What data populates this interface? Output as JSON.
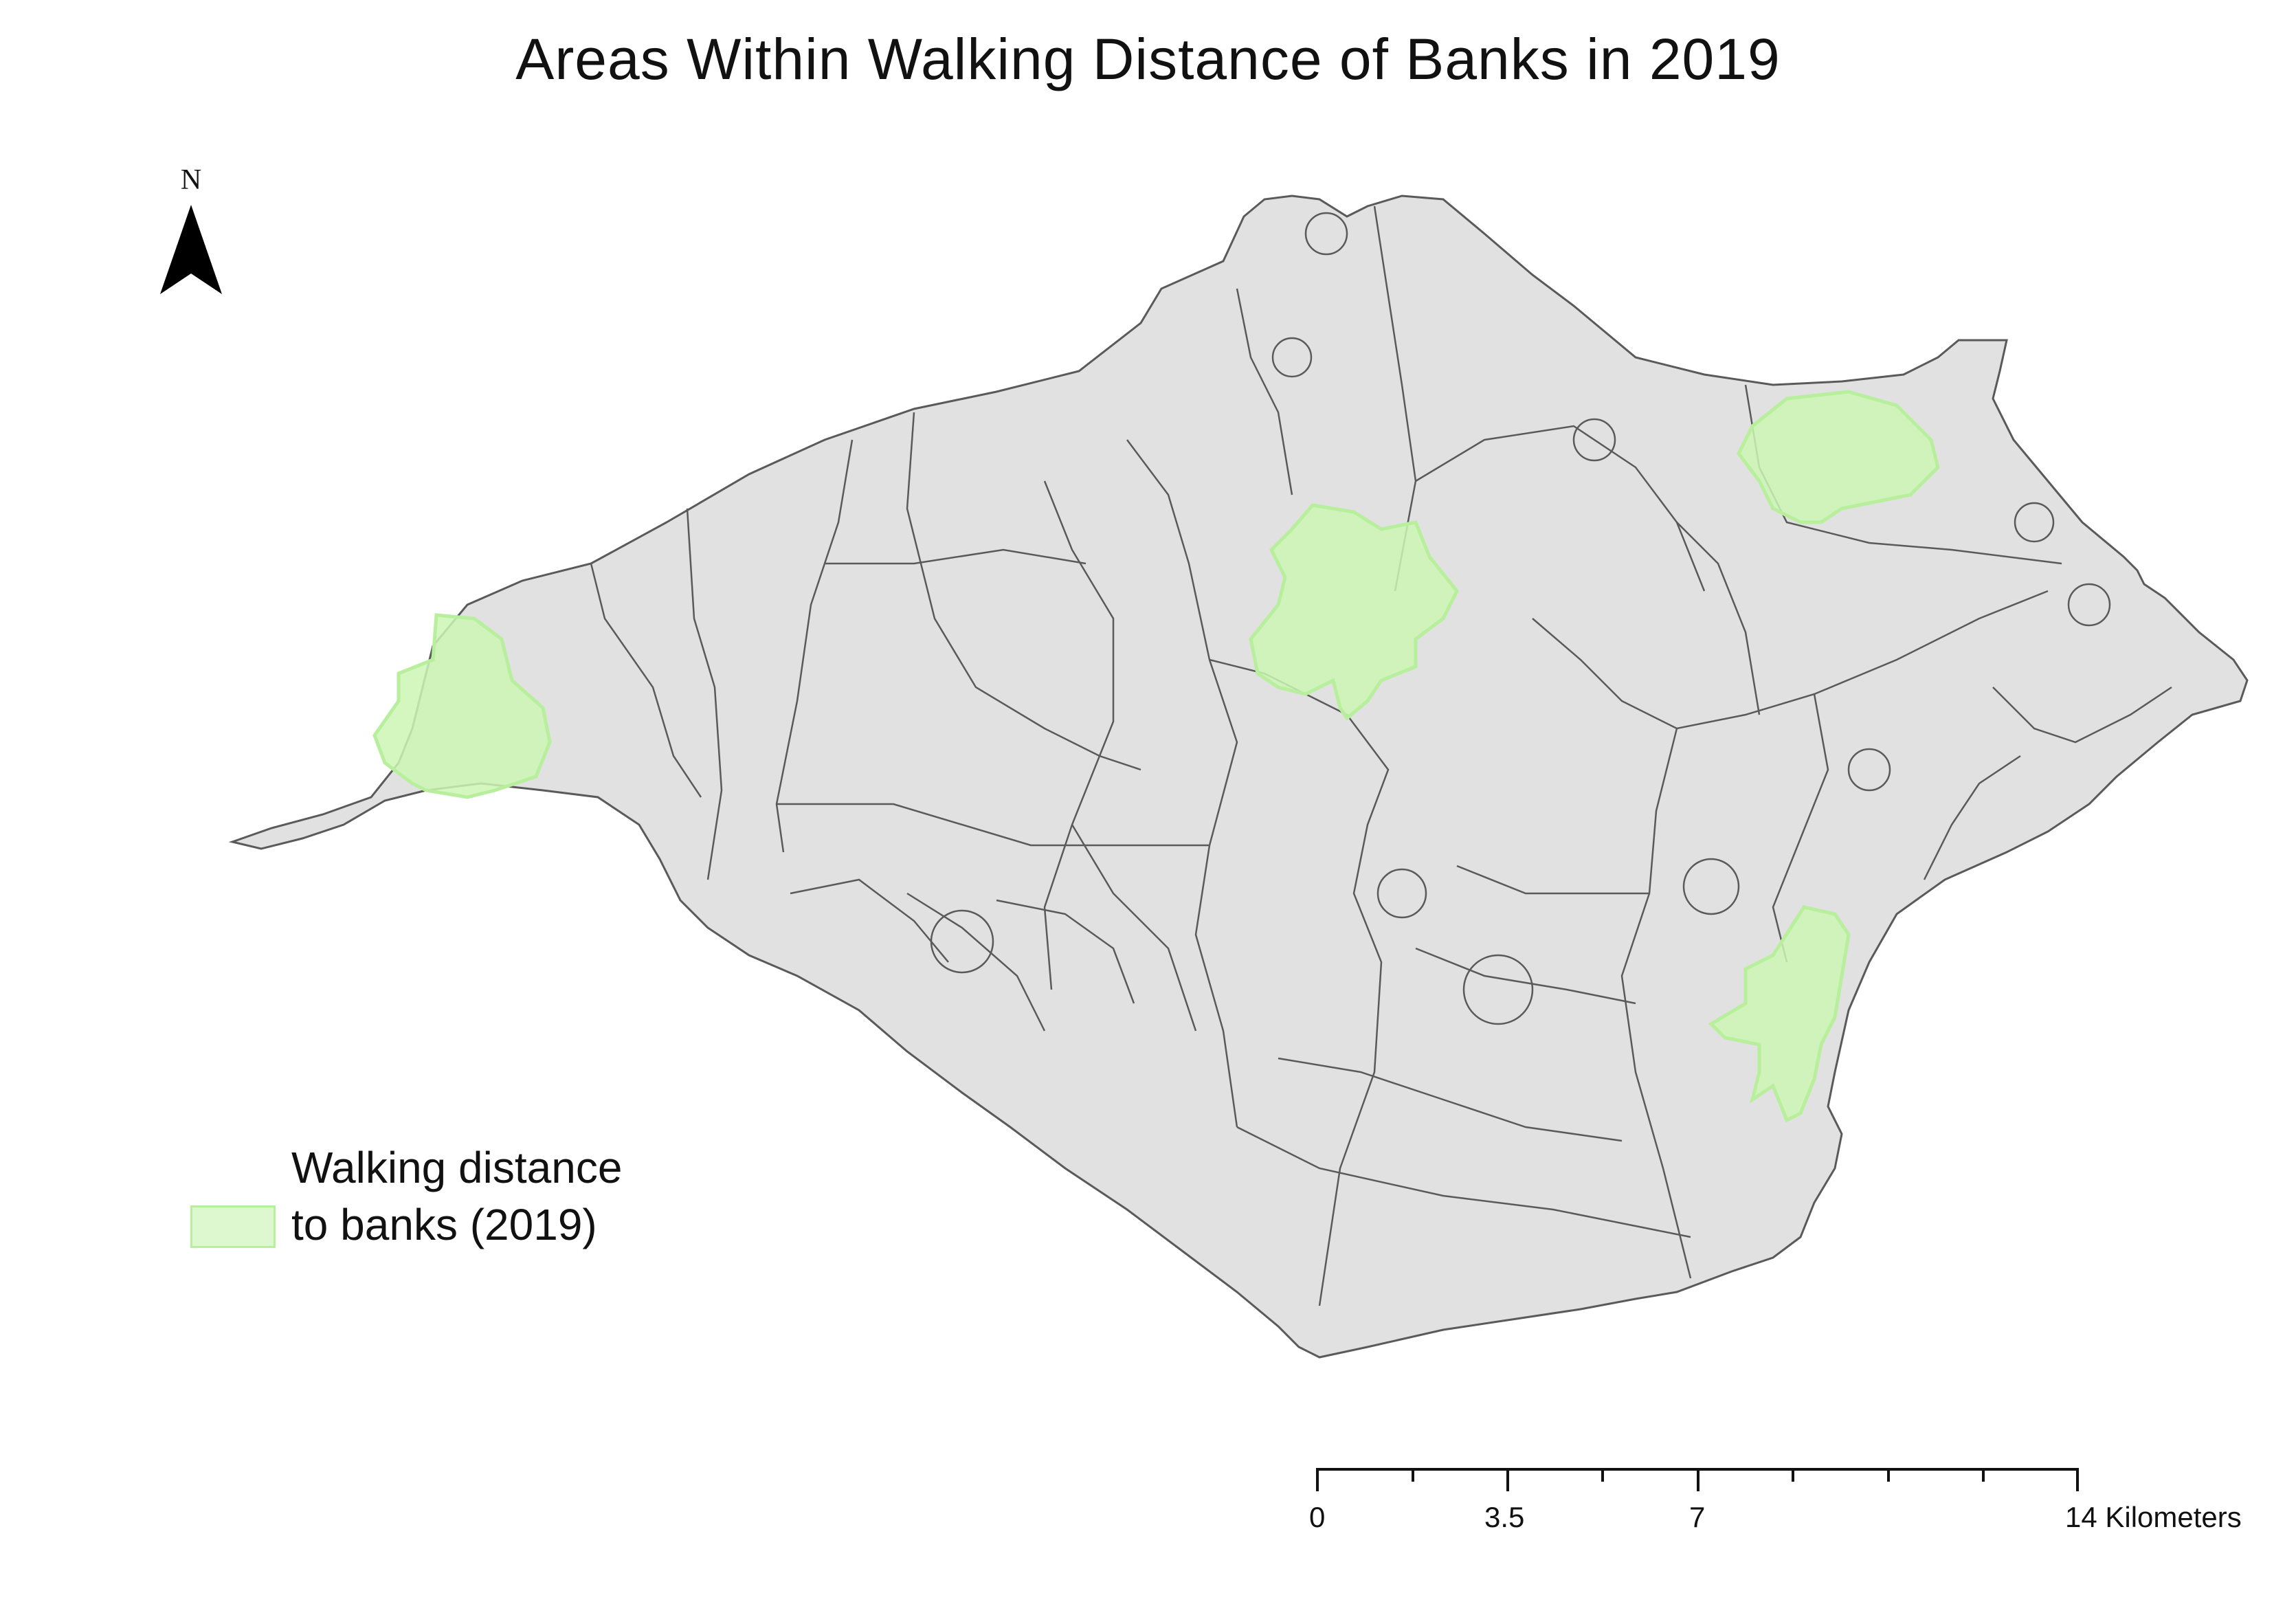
{
  "title": "Areas Within Walking Distance of Banks in 2019",
  "north_arrow": {
    "letter": "N"
  },
  "legend": {
    "label": "Walking distance to banks (2019)",
    "fill_color": "#ddf8cf",
    "stroke_color": "#b8ef9c"
  },
  "scale_bar": {
    "labels": [
      "0",
      "3.5",
      "7",
      "14 Kilometers"
    ]
  },
  "colors": {
    "island_fill": "#e1e1e1",
    "boundary": "#5a5a5a",
    "walking_area": "#cdf5b4"
  }
}
